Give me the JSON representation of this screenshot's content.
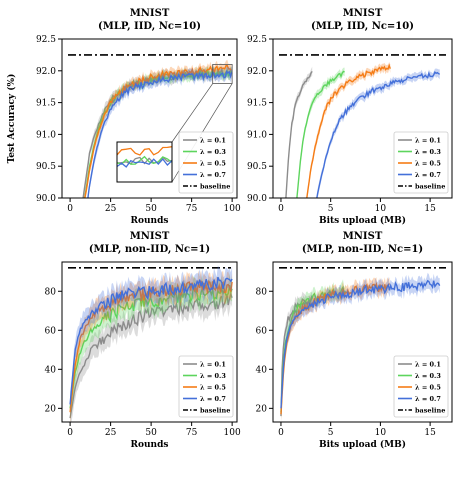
{
  "chart_data": [
    {
      "type": "line",
      "title": "MNIST",
      "subtitle": "(MLP, IID, Nc=10)",
      "xlabel": "Rounds",
      "ylabel": "Test Accuracy (%)",
      "xlim": [
        -5,
        103
      ],
      "ylim": [
        90.0,
        92.5
      ],
      "xticks": [
        0,
        25,
        50,
        75,
        100
      ],
      "xtick_labels": [
        "0",
        "25",
        "50",
        "75",
        "100"
      ],
      "yticks": [
        90.0,
        90.5,
        91.0,
        91.5,
        92.0,
        92.5
      ],
      "ytick_labels": [
        "90.0",
        "90.5",
        "91.0",
        "91.5",
        "92.0",
        "92.5"
      ],
      "baseline": 92.25,
      "legend_position": "lower-right",
      "inset": {
        "xlim": [
          88,
          100
        ],
        "ylim": [
          91.8,
          92.1
        ]
      },
      "series": [
        {
          "name": "λ = 0.1",
          "x": [
            8,
            10,
            12,
            15,
            18,
            20,
            25,
            30,
            35,
            40,
            50,
            60,
            70,
            80,
            90,
            100
          ],
          "y": [
            90.0,
            90.35,
            90.7,
            90.98,
            91.18,
            91.32,
            91.55,
            91.66,
            91.74,
            91.8,
            91.86,
            91.9,
            91.92,
            91.95,
            91.96,
            91.97
          ]
        },
        {
          "name": "λ = 0.3",
          "x": [
            9,
            10,
            12,
            15,
            18,
            20,
            25,
            30,
            35,
            40,
            50,
            60,
            70,
            80,
            90,
            100
          ],
          "y": [
            90.0,
            90.15,
            90.5,
            90.85,
            91.1,
            91.25,
            91.5,
            91.64,
            91.73,
            91.78,
            91.86,
            91.9,
            91.93,
            91.95,
            91.96,
            91.97
          ]
        },
        {
          "name": "λ = 0.5",
          "x": [
            9,
            10,
            12,
            15,
            18,
            20,
            25,
            30,
            35,
            40,
            50,
            60,
            70,
            80,
            90,
            100
          ],
          "y": [
            90.0,
            90.12,
            90.45,
            90.82,
            91.08,
            91.22,
            91.5,
            91.65,
            91.75,
            91.81,
            91.9,
            91.95,
            91.98,
            92.0,
            92.02,
            92.04
          ]
        },
        {
          "name": "λ = 0.7",
          "x": [
            11,
            12,
            15,
            18,
            20,
            25,
            30,
            35,
            40,
            50,
            60,
            70,
            80,
            90,
            100
          ],
          "y": [
            90.0,
            90.2,
            90.62,
            90.93,
            91.1,
            91.4,
            91.56,
            91.67,
            91.74,
            91.82,
            91.87,
            91.9,
            91.92,
            91.93,
            91.95
          ]
        }
      ]
    },
    {
      "type": "line",
      "title": "MNIST",
      "subtitle": "(MLP, IID, Nc=10)",
      "xlabel": "Bits upload (MB)",
      "ylabel": "",
      "xlim": [
        -0.8,
        17.2
      ],
      "ylim": [
        90.0,
        92.5
      ],
      "xticks": [
        0,
        5,
        10,
        15
      ],
      "xtick_labels": [
        "0",
        "5",
        "10",
        "15"
      ],
      "yticks": [
        90.0,
        90.5,
        91.0,
        91.5,
        92.0,
        92.5
      ],
      "ytick_labels": [
        "90.0",
        "90.5",
        "91.0",
        "91.5",
        "92.0",
        "92.5"
      ],
      "baseline": 92.25,
      "legend_position": "lower-right",
      "series": [
        {
          "name": "λ = 0.1",
          "x": [
            0.5,
            0.7,
            0.9,
            1.1,
            1.3,
            1.5,
            1.7,
            2.0,
            2.3,
            2.6,
            2.9,
            3.2
          ],
          "y": [
            90.0,
            90.5,
            90.9,
            91.15,
            91.35,
            91.5,
            91.6,
            91.7,
            91.8,
            91.86,
            91.92,
            91.97
          ]
        },
        {
          "name": "λ = 0.3",
          "x": [
            1.6,
            1.9,
            2.2,
            2.6,
            3.0,
            3.5,
            4.0,
            4.5,
            5.0,
            5.5,
            6.0,
            6.5
          ],
          "y": [
            90.0,
            90.5,
            90.9,
            91.2,
            91.4,
            91.6,
            91.7,
            91.78,
            91.85,
            91.9,
            91.93,
            91.97
          ]
        },
        {
          "name": "λ = 0.5",
          "x": [
            2.6,
            3.0,
            3.5,
            4.0,
            4.5,
            5.0,
            5.5,
            6.0,
            7.0,
            8.0,
            9.0,
            10.0,
            11.0
          ],
          "y": [
            90.0,
            90.45,
            90.85,
            91.15,
            91.4,
            91.55,
            91.65,
            91.73,
            91.84,
            91.92,
            91.97,
            92.02,
            92.05
          ]
        },
        {
          "name": "λ = 0.7",
          "x": [
            3.6,
            4.0,
            4.5,
            5.0,
            5.5,
            6.0,
            7.0,
            8.0,
            9.0,
            10.0,
            11.0,
            12.0,
            13.0,
            14.0,
            15.0,
            16.0
          ],
          "y": [
            90.0,
            90.3,
            90.62,
            90.9,
            91.1,
            91.25,
            91.45,
            91.58,
            91.67,
            91.74,
            91.8,
            91.84,
            91.88,
            91.91,
            91.93,
            91.95
          ]
        }
      ]
    },
    {
      "type": "line",
      "title": "MNIST",
      "subtitle": "(MLP, non-IID, Nc=1)",
      "xlabel": "Rounds",
      "ylabel": "",
      "xlim": [
        -5,
        103
      ],
      "ylim": [
        13,
        95
      ],
      "xticks": [
        0,
        25,
        50,
        75,
        100
      ],
      "xtick_labels": [
        "0",
        "25",
        "50",
        "75",
        "100"
      ],
      "yticks": [
        20,
        40,
        60,
        80
      ],
      "ytick_labels": [
        "20",
        "40",
        "60",
        "80"
      ],
      "baseline": 92,
      "legend_position": "lower-right",
      "series": [
        {
          "name": "λ = 0.1",
          "x": [
            0,
            3,
            6,
            10,
            15,
            20,
            25,
            30,
            40,
            50,
            60,
            70,
            80,
            90,
            100
          ],
          "y": [
            15,
            30,
            38,
            45,
            52,
            55,
            60,
            62,
            66,
            68,
            70,
            72,
            74,
            74,
            76
          ]
        },
        {
          "name": "λ = 0.3",
          "x": [
            0,
            3,
            6,
            10,
            15,
            20,
            25,
            30,
            40,
            50,
            60,
            70,
            80,
            90,
            100
          ],
          "y": [
            20,
            38,
            48,
            56,
            62,
            65,
            68,
            70,
            73,
            75,
            76,
            78,
            79,
            79,
            80
          ]
        },
        {
          "name": "λ = 0.5",
          "x": [
            0,
            3,
            6,
            10,
            15,
            20,
            25,
            30,
            40,
            50,
            60,
            70,
            80,
            90,
            100
          ],
          "y": [
            18,
            42,
            55,
            62,
            68,
            71,
            74,
            76,
            78,
            79,
            80,
            81,
            82,
            82,
            83
          ]
        },
        {
          "name": "λ = 0.7",
          "x": [
            0,
            3,
            6,
            10,
            15,
            20,
            25,
            30,
            40,
            50,
            60,
            70,
            80,
            90,
            100
          ],
          "y": [
            22,
            50,
            60,
            66,
            70,
            73,
            75,
            77,
            79,
            80,
            81,
            82,
            83,
            84,
            84
          ]
        }
      ]
    },
    {
      "type": "line",
      "title": "MNIST",
      "subtitle": "(MLP, non-IID, Nc=1)",
      "xlabel": "Bits upload (MB)",
      "ylabel": "",
      "xlim": [
        -0.8,
        17.2
      ],
      "ylim": [
        13,
        95
      ],
      "xticks": [
        0,
        5,
        10,
        15
      ],
      "xtick_labels": [
        "0",
        "5",
        "10",
        "15"
      ],
      "yticks": [
        20,
        40,
        60,
        80
      ],
      "ytick_labels": [
        "20",
        "40",
        "60",
        "80"
      ],
      "baseline": 92,
      "legend_position": "lower-right",
      "series": [
        {
          "name": "λ = 0.1",
          "x": [
            0,
            0.1,
            0.2,
            0.35,
            0.5,
            0.7,
            0.9,
            1.2,
            1.6,
            2.0,
            2.5,
            3.2
          ],
          "y": [
            16,
            38,
            48,
            56,
            62,
            66,
            68,
            70,
            72,
            74,
            75,
            76
          ]
        },
        {
          "name": "λ = 0.3",
          "x": [
            0,
            0.2,
            0.4,
            0.7,
            1.0,
            1.5,
            2.0,
            3.0,
            4.0,
            5.0,
            6.0,
            6.5
          ],
          "y": [
            18,
            40,
            52,
            60,
            65,
            70,
            73,
            76,
            78,
            79,
            80,
            80
          ]
        },
        {
          "name": "λ = 0.5",
          "x": [
            0,
            0.3,
            0.6,
            1.0,
            1.5,
            2.0,
            3.0,
            4.0,
            5.0,
            6.0,
            7.0,
            8.0,
            9.0,
            10.0,
            11.0
          ],
          "y": [
            17,
            42,
            54,
            62,
            67,
            70,
            74,
            76,
            78,
            79,
            80,
            81,
            82,
            82,
            83
          ]
        },
        {
          "name": "λ = 0.7",
          "x": [
            0,
            0.3,
            0.6,
            1.0,
            1.5,
            2.0,
            3.0,
            4.0,
            5.0,
            6.0,
            7.0,
            8.0,
            9.0,
            10.0,
            11.0,
            12.0,
            13.0,
            14.0,
            15.0,
            16.0
          ],
          "y": [
            20,
            45,
            56,
            63,
            67,
            70,
            73,
            75,
            77,
            78,
            79,
            80,
            81,
            81,
            82,
            82,
            83,
            83,
            84,
            84
          ]
        }
      ]
    }
  ],
  "legend_entries": [
    "λ = 0.1",
    "λ = 0.3",
    "λ = 0.5",
    "λ = 0.7",
    "baseline"
  ],
  "colors": {
    "λ = 0.1": "#8c8c8c",
    "λ = 0.3": "#5dd55d",
    "λ = 0.5": "#f57c16",
    "λ = 0.7": "#4470d9",
    "baseline": "#000000"
  }
}
